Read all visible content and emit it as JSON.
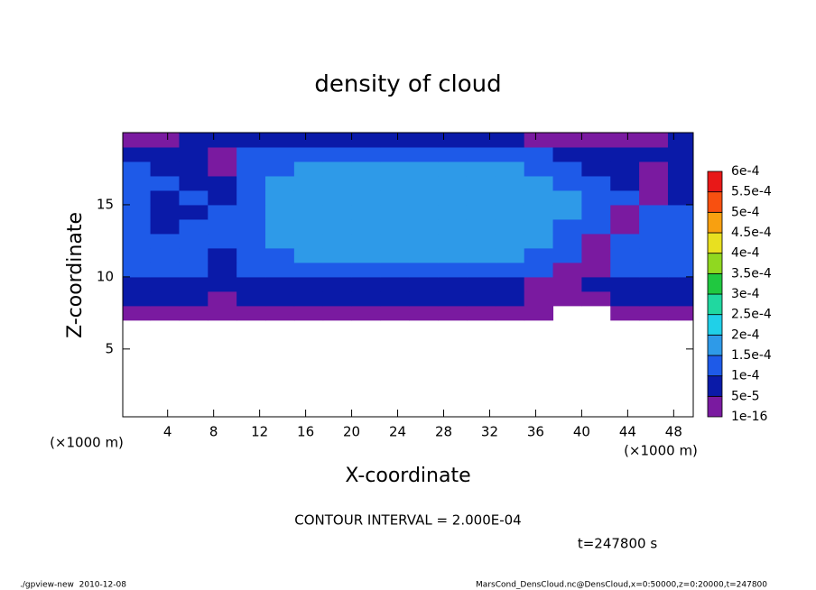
{
  "chart_data": {
    "type": "heatmap",
    "title": "density of cloud",
    "xlabel": "X-coordinate",
    "ylabel": "Z-coordinate",
    "x_unit": "(×1000 m)",
    "y_unit": "(×1000 m)",
    "xlim": [
      0.1,
      49.7
    ],
    "ylim": [
      0.3,
      20
    ],
    "xticks": [
      4,
      8,
      12,
      16,
      20,
      24,
      28,
      32,
      36,
      40,
      44,
      48
    ],
    "yticks": [
      5,
      10,
      15
    ],
    "x": [
      1.25,
      3.75,
      6.25,
      8.75,
      11.25,
      13.75,
      16.25,
      18.75,
      21.25,
      23.75,
      26.25,
      28.75,
      31.25,
      33.75,
      36.25,
      38.75,
      41.25,
      43.75,
      46.25,
      48.75
    ],
    "y": [
      7.5,
      8.5,
      9.5,
      10.5,
      11.5,
      12.5,
      13.5,
      14.5,
      15.5,
      16.5,
      17.5,
      18.5,
      19.5
    ],
    "values": [
      [
        3e-05,
        3e-05,
        3e-05,
        3e-05,
        3e-05,
        3e-05,
        3e-05,
        3e-05,
        3e-05,
        3e-05,
        3e-05,
        3e-05,
        3e-05,
        3e-05,
        3e-05,
        null,
        null,
        3e-05,
        3e-05,
        3e-05
      ],
      [
        7e-05,
        7e-05,
        7e-05,
        3e-05,
        7e-05,
        7e-05,
        7e-05,
        7e-05,
        7e-05,
        7e-05,
        7e-05,
        7e-05,
        7e-05,
        7e-05,
        3e-05,
        3e-05,
        3e-05,
        7e-05,
        7e-05,
        7e-05
      ],
      [
        7e-05,
        7e-05,
        7e-05,
        7e-05,
        7e-05,
        7e-05,
        7e-05,
        7e-05,
        7e-05,
        7e-05,
        7e-05,
        7e-05,
        7e-05,
        7e-05,
        3e-05,
        3e-05,
        7e-05,
        7e-05,
        7e-05,
        7e-05
      ],
      [
        0.00012,
        0.00012,
        0.00012,
        7e-05,
        0.00012,
        0.00012,
        0.00012,
        0.00012,
        0.00012,
        0.00012,
        0.00012,
        0.00012,
        0.00012,
        0.00012,
        0.00012,
        3e-05,
        3e-05,
        0.00012,
        0.00012,
        0.00012
      ],
      [
        0.00012,
        0.00012,
        0.00012,
        7e-05,
        0.00012,
        0.00012,
        0.00017,
        0.00017,
        0.00017,
        0.00017,
        0.00017,
        0.00017,
        0.00017,
        0.00017,
        0.00012,
        0.00012,
        3e-05,
        0.00012,
        0.00012,
        0.00012
      ],
      [
        0.00012,
        0.00012,
        0.00012,
        0.00012,
        0.00012,
        0.00017,
        0.00017,
        0.00017,
        0.00017,
        0.00017,
        0.00017,
        0.00017,
        0.00017,
        0.00017,
        0.00017,
        0.00012,
        3e-05,
        0.00012,
        0.00012,
        0.00012
      ],
      [
        0.00012,
        7e-05,
        0.00012,
        0.00012,
        0.00012,
        0.00017,
        0.00017,
        0.00017,
        0.00017,
        0.00017,
        0.00017,
        0.00017,
        0.00017,
        0.00017,
        0.00017,
        0.00012,
        0.00012,
        3e-05,
        0.00012,
        0.00012
      ],
      [
        0.00012,
        7e-05,
        7e-05,
        0.00012,
        0.00012,
        0.00017,
        0.00017,
        0.00017,
        0.00017,
        0.00017,
        0.00017,
        0.00017,
        0.00017,
        0.00017,
        0.00017,
        0.00017,
        0.00012,
        3e-05,
        0.00012,
        0.00012
      ],
      [
        0.00012,
        7e-05,
        0.00012,
        7e-05,
        0.00012,
        0.00017,
        0.00017,
        0.00017,
        0.00017,
        0.00017,
        0.00017,
        0.00017,
        0.00017,
        0.00017,
        0.00017,
        0.00017,
        0.00012,
        0.00012,
        3e-05,
        7e-05
      ],
      [
        0.00012,
        0.00012,
        7e-05,
        7e-05,
        0.00012,
        0.00017,
        0.00017,
        0.00017,
        0.00017,
        0.00017,
        0.00017,
        0.00017,
        0.00017,
        0.00017,
        0.00017,
        0.00012,
        0.00012,
        7e-05,
        3e-05,
        7e-05
      ],
      [
        0.00012,
        7e-05,
        7e-05,
        3e-05,
        0.00012,
        0.00012,
        0.00017,
        0.00017,
        0.00017,
        0.00017,
        0.00017,
        0.00017,
        0.00017,
        0.00017,
        0.00012,
        0.00012,
        7e-05,
        7e-05,
        3e-05,
        7e-05
      ],
      [
        7e-05,
        7e-05,
        7e-05,
        3e-05,
        0.00012,
        0.00012,
        0.00012,
        0.00012,
        0.00012,
        0.00012,
        0.00012,
        0.00012,
        0.00012,
        0.00012,
        0.00012,
        7e-05,
        7e-05,
        7e-05,
        7e-05,
        7e-05
      ],
      [
        3e-05,
        3e-05,
        7e-05,
        7e-05,
        7e-05,
        7e-05,
        7e-05,
        7e-05,
        7e-05,
        7e-05,
        7e-05,
        7e-05,
        7e-05,
        7e-05,
        3e-05,
        3e-05,
        3e-05,
        3e-05,
        3e-05,
        7e-05
      ]
    ],
    "levels": [
      {
        "value": 1e-16,
        "label": "1e-16"
      },
      {
        "value": 5e-05,
        "label": "5e-5"
      },
      {
        "value": 0.0001,
        "label": "1e-4"
      },
      {
        "value": 0.00015,
        "label": "1.5e-4"
      },
      {
        "value": 0.0002,
        "label": "2e-4"
      },
      {
        "value": 0.00025,
        "label": "2.5e-4"
      },
      {
        "value": 0.0003,
        "label": "3e-4"
      },
      {
        "value": 0.00035,
        "label": "3.5e-4"
      },
      {
        "value": 0.0004,
        "label": "4e-4"
      },
      {
        "value": 0.00045,
        "label": "4.5e-4"
      },
      {
        "value": 0.0005,
        "label": "5e-4"
      },
      {
        "value": 0.00055,
        "label": "5.5e-4"
      },
      {
        "value": 0.0006,
        "label": "6e-4"
      }
    ],
    "level_colors": [
      "#7a1aa0",
      "#0a1aa8",
      "#1e5ae8",
      "#2e9ae8",
      "#20d0e8",
      "#20d8a0",
      "#20c840",
      "#90d820",
      "#e8e020",
      "#f8a010",
      "#f85010",
      "#e81818"
    ],
    "contour_note": "CONTOUR INTERVAL = 2.000E-04",
    "time_label": "t=247800 s",
    "footer_left": "./gpview-new  2010-12-08",
    "footer_right": "MarsCond_DensCloud.nc@DensCloud,x=0:50000,z=0:20000,t=247800"
  }
}
